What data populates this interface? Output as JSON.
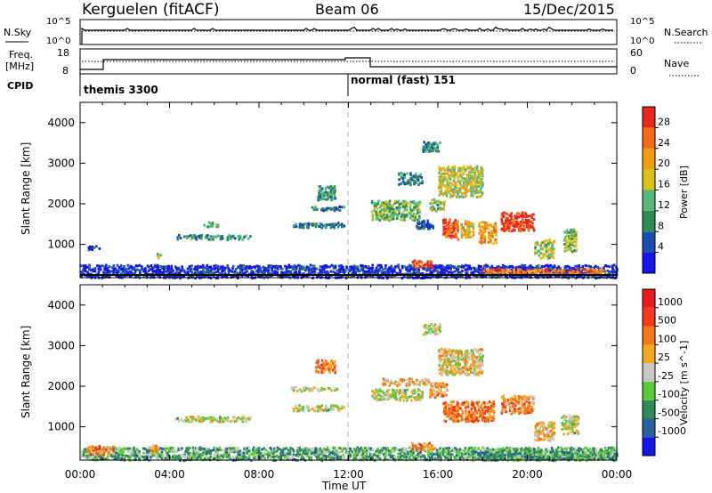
{
  "header": {
    "station": "Kerguelen (fitACF)",
    "beam": "Beam 06",
    "date": "15/Dec/2015"
  },
  "noise_panel": {
    "left_label": "N.Sky",
    "right_label": "N.Search",
    "left_ticks": [
      "10^5",
      "10^0"
    ],
    "right_ticks": [
      "10^5",
      "10^0"
    ]
  },
  "freq_panel": {
    "left_label_line1": "Freq.",
    "left_label_line2": "[MHz]",
    "right_label": "Nave",
    "left_ticks": [
      "18",
      "8"
    ],
    "right_ticks": [
      "60",
      "0"
    ]
  },
  "cpid": {
    "label": "CPID",
    "segments": [
      {
        "name": "themis 3300",
        "start_h": 0
      },
      {
        "name": "normal (fast) 151",
        "start_h": 12.0
      }
    ]
  },
  "chart_data": [
    {
      "type": "heatmap",
      "quantity": "Power",
      "ylabel": "Slant Range [km]",
      "ylim": [
        180,
        4500
      ],
      "yticks": [
        "1000",
        "2000",
        "3000",
        "4000"
      ],
      "xlim_h": [
        0,
        24
      ],
      "colorbar_label": "Power [dB]",
      "colorbar_ticks": [
        "4",
        "8",
        "12",
        "16",
        "20",
        "24",
        "28"
      ],
      "colors": [
        "#1515e6",
        "#1a4fb0",
        "#2e8b57",
        "#57b87a",
        "#d6c21a",
        "#f59c16",
        "#f46a17",
        "#e7291c"
      ],
      "features": [
        {
          "t0": 0.0,
          "t1": 24.0,
          "r0": 200,
          "r1": 520,
          "level": 0.1
        },
        {
          "t0": 0.3,
          "t1": 0.9,
          "r0": 880,
          "r1": 1000,
          "level": 0.15
        },
        {
          "t0": 3.4,
          "t1": 3.6,
          "r0": 690,
          "r1": 800,
          "level": 0.5
        },
        {
          "t0": 4.2,
          "t1": 7.6,
          "r0": 1150,
          "r1": 1260,
          "level": 0.35
        },
        {
          "t0": 5.5,
          "t1": 6.2,
          "r0": 1460,
          "r1": 1580,
          "level": 0.45
        },
        {
          "t0": 9.5,
          "t1": 11.8,
          "r0": 1430,
          "r1": 1560,
          "level": 0.3
        },
        {
          "t0": 10.2,
          "t1": 11.8,
          "r0": 1860,
          "r1": 1960,
          "level": 0.25
        },
        {
          "t0": 10.6,
          "t1": 11.4,
          "r0": 2120,
          "r1": 2480,
          "level": 0.35
        },
        {
          "t0": 13.0,
          "t1": 15.2,
          "r0": 1620,
          "r1": 2100,
          "level": 0.45
        },
        {
          "t0": 14.2,
          "t1": 15.3,
          "r0": 2500,
          "r1": 2800,
          "level": 0.3
        },
        {
          "t0": 15.0,
          "t1": 15.8,
          "r0": 1400,
          "r1": 1620,
          "level": 0.2
        },
        {
          "t0": 15.6,
          "t1": 16.3,
          "r0": 1850,
          "r1": 2140,
          "level": 0.5
        },
        {
          "t0": 16.0,
          "t1": 18.0,
          "r0": 2200,
          "r1": 2950,
          "level": 0.55
        },
        {
          "t0": 16.2,
          "t1": 16.9,
          "r0": 1150,
          "r1": 1650,
          "level": 0.85
        },
        {
          "t0": 17.0,
          "t1": 17.6,
          "r0": 1200,
          "r1": 1600,
          "level": 0.6
        },
        {
          "t0": 17.8,
          "t1": 18.6,
          "r0": 1050,
          "r1": 1580,
          "level": 0.7
        },
        {
          "t0": 18.8,
          "t1": 20.3,
          "r0": 1350,
          "r1": 1820,
          "level": 0.95
        },
        {
          "t0": 20.3,
          "t1": 21.2,
          "r0": 680,
          "r1": 1150,
          "level": 0.5
        },
        {
          "t0": 21.6,
          "t1": 22.2,
          "r0": 850,
          "r1": 1400,
          "level": 0.45
        },
        {
          "t0": 14.8,
          "t1": 15.8,
          "r0": 450,
          "r1": 630,
          "level": 0.9
        },
        {
          "t0": 18.0,
          "t1": 23.5,
          "r0": 280,
          "r1": 430,
          "level": 0.8
        },
        {
          "t0": 15.3,
          "t1": 16.1,
          "r0": 3300,
          "r1": 3560,
          "level": 0.3
        }
      ]
    },
    {
      "type": "heatmap",
      "quantity": "Velocity",
      "ylabel": "Slant Range [km]",
      "ylim": [
        180,
        4500
      ],
      "yticks": [
        "1000",
        "2000",
        "3000",
        "4000"
      ],
      "xlabel": "Time UT",
      "xticks": [
        "00:00",
        "04:00",
        "08:00",
        "12:00",
        "16:00",
        "20:00",
        "00:00"
      ],
      "xlim_h": [
        0,
        24
      ],
      "colorbar_label": "Velocity [m s^-1]",
      "colorbar_ticks": [
        "1000",
        "500",
        "100",
        "25",
        "-25",
        "-100",
        "-500",
        "-1000"
      ],
      "colors": [
        "#1515e6",
        "#2a5f9e",
        "#2e8b57",
        "#5cc83b",
        "#c8c8c0",
        "#f5a623",
        "#f4761a",
        "#f23a1c",
        "#e61c1c"
      ],
      "features": [
        {
          "t0": 0.0,
          "t1": 24.0,
          "r0": 200,
          "r1": 520,
          "level": 0.35
        },
        {
          "t0": 0.3,
          "t1": 1.5,
          "r0": 320,
          "r1": 560,
          "level": 0.7
        },
        {
          "t0": 3.0,
          "t1": 3.5,
          "r0": 400,
          "r1": 600,
          "level": 0.6
        },
        {
          "t0": 4.2,
          "t1": 7.6,
          "r0": 1150,
          "r1": 1280,
          "level": 0.5
        },
        {
          "t0": 9.5,
          "t1": 11.8,
          "r0": 1420,
          "r1": 1560,
          "level": 0.5
        },
        {
          "t0": 10.5,
          "t1": 11.4,
          "r0": 2350,
          "r1": 2680,
          "level": 0.72
        },
        {
          "t0": 9.4,
          "t1": 11.5,
          "r0": 1900,
          "r1": 2010,
          "level": 0.5
        },
        {
          "t0": 13.0,
          "t1": 15.3,
          "r0": 1680,
          "r1": 1950,
          "level": 0.5
        },
        {
          "t0": 13.5,
          "t1": 15.6,
          "r0": 2030,
          "r1": 2220,
          "level": 0.6
        },
        {
          "t0": 15.6,
          "t1": 16.4,
          "r0": 1750,
          "r1": 2100,
          "level": 0.65
        },
        {
          "t0": 16.0,
          "t1": 18.0,
          "r0": 2300,
          "r1": 2950,
          "level": 0.55
        },
        {
          "t0": 16.2,
          "t1": 18.5,
          "r0": 1150,
          "r1": 1650,
          "level": 0.72
        },
        {
          "t0": 18.8,
          "t1": 20.3,
          "r0": 1350,
          "r1": 1800,
          "level": 0.68
        },
        {
          "t0": 20.3,
          "t1": 21.2,
          "r0": 680,
          "r1": 1150,
          "level": 0.6
        },
        {
          "t0": 21.5,
          "t1": 22.3,
          "r0": 850,
          "r1": 1300,
          "level": 0.5
        },
        {
          "t0": 14.8,
          "t1": 15.8,
          "r0": 450,
          "r1": 630,
          "level": 0.72
        },
        {
          "t0": 17.5,
          "t1": 24.0,
          "r0": 200,
          "r1": 420,
          "level": 0.32
        },
        {
          "t0": 15.3,
          "t1": 16.1,
          "r0": 3300,
          "r1": 3560,
          "level": 0.5
        }
      ]
    }
  ]
}
